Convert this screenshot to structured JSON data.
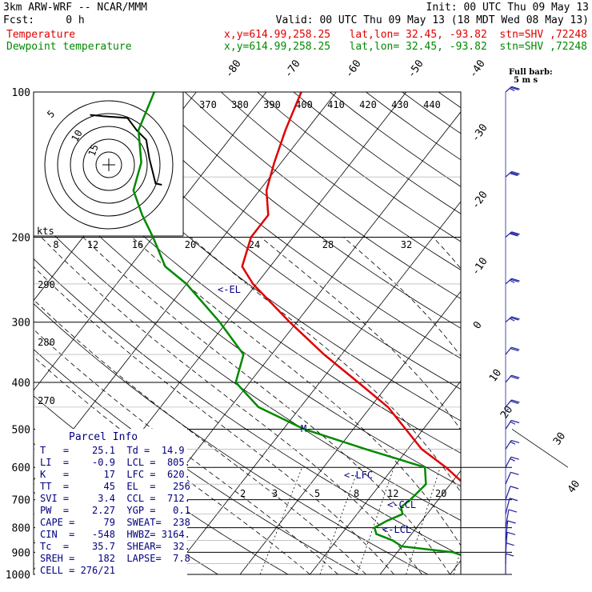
{
  "header": {
    "model": "3km ARW-WRF -- NCAR/MMM",
    "init": "Init: 00 UTC Thu 09 May 13",
    "fcst": "Fcst:     0 h",
    "valid": "Valid: 00 UTC Thu 09 May 13 (18 MDT Wed 08 May 13)",
    "temp_label": "Temperature",
    "dew_label": "Dewpoint temperature",
    "temp_loc": "x,y=614.99,258.25   lat,lon= 32.45, -93.82  stn=SHV ,72248",
    "dew_loc": "x,y=614.99,258.25   lat,lon= 32.45, -93.82  stn=SHV ,72248",
    "barb_title": "Full barb:",
    "barb_units": "5 m s"
  },
  "colors": {
    "temperature": "#e00000",
    "dewpoint": "#008a00",
    "annot": "#000080",
    "barb": "#2020a0"
  },
  "parcel_info": {
    "title": "Parcel Info",
    "rows": [
      "T   =    25.1  Td =  14.9",
      "LI  =    -0.9  LCL =  805.",
      "K   =      17  LFC =  620.",
      "TT  =      45  EL  =   256",
      "SVI =     3.4  CCL =  712.",
      "PW  =    2.27  YGP =   0.1",
      "CAPE =     79  SWEAT=  238",
      "CIN  =   -548  HWBZ= 3164.",
      "Tc  =    35.7  SHEAR=  32.",
      "SREH =    182  LAPSE=  7.8",
      "CELL = 276/21"
    ]
  },
  "levels_annot": {
    "el": "<-EL",
    "lfc": "<-LFC",
    "ccl": "<-CCL",
    "lcl": "<-LCL",
    "mark": "M"
  },
  "hodograph": {
    "kts_label": "kts",
    "ring_labels": [
      "5",
      "10",
      "15"
    ],
    "speed_ticks": [
      "8",
      "12",
      "16",
      "20",
      "24",
      "28",
      "32"
    ],
    "trace_uv": [
      [
        -3,
        8
      ],
      [
        -1,
        7.8
      ],
      [
        3,
        7.5
      ],
      [
        4.5,
        5.5
      ],
      [
        6,
        4
      ],
      [
        6.5,
        1
      ],
      [
        7,
        -1
      ],
      [
        7.5,
        -3
      ],
      [
        8.5,
        -3.2
      ]
    ]
  },
  "chart_data": {
    "type": "line",
    "title": "",
    "xlabel": "",
    "ylabel": "",
    "pressure_ticks": [
      100,
      200,
      300,
      400,
      500,
      600,
      700,
      800,
      900,
      1000
    ],
    "isotherm_labels": [
      -80,
      -70,
      -60,
      -50,
      -40,
      -30,
      -20,
      -10,
      0,
      10,
      20,
      30,
      40
    ],
    "theta_e_labels": [
      370,
      380,
      390,
      400,
      410,
      420,
      430,
      440
    ],
    "dry_adiabat_labels": [
      290,
      280,
      270
    ],
    "mixing_ratio_labels": [
      2,
      3,
      5,
      8,
      12,
      20
    ],
    "series": [
      {
        "name": "Temperature",
        "p": [
          1000,
          975,
          950,
          925,
          900,
          875,
          850,
          825,
          800,
          775,
          750,
          725,
          700,
          650,
          600,
          550,
          500,
          450,
          400,
          350,
          300,
          250,
          230,
          200,
          180,
          160,
          140,
          120,
          100
        ],
        "t": [
          22.8,
          20.0,
          17.5,
          15.2,
          14.0,
          14.2,
          16.3,
          16.0,
          14.5,
          12.5,
          10.5,
          8.5,
          6.5,
          2.0,
          -2.5,
          -8.0,
          -12.5,
          -17.5,
          -24.5,
          -32.5,
          -41.0,
          -50.5,
          -54.0,
          -56.0,
          -56.0,
          -59.0,
          -61.0,
          -63.0,
          -65.0
        ]
      },
      {
        "name": "Dewpoint temperature",
        "p": [
          1000,
          975,
          950,
          925,
          900,
          875,
          850,
          825,
          800,
          775,
          750,
          725,
          700,
          650,
          600,
          550,
          500,
          450,
          400,
          350,
          300,
          250,
          230,
          200,
          180,
          160,
          140,
          120,
          100
        ],
        "t": [
          14.9,
          13.0,
          12.5,
          11.0,
          8.0,
          0.0,
          -2.0,
          -5.0,
          -6.0,
          -5.0,
          -3.5,
          -4.5,
          -4.0,
          -3.5,
          -5.5,
          -16.0,
          -27.0,
          -36.0,
          -42.0,
          -44.0,
          -51.0,
          -60.0,
          -65.0,
          -70.0,
          -74.0,
          -78.0,
          -80.0,
          -84.0,
          -86.0
        ]
      }
    ],
    "wind_barbs": [
      {
        "p": 1000,
        "spd": 8,
        "dir": 180
      },
      {
        "p": 950,
        "spd": 10,
        "dir": 185
      },
      {
        "p": 900,
        "spd": 12,
        "dir": 195
      },
      {
        "p": 850,
        "spd": 12,
        "dir": 200
      },
      {
        "p": 800,
        "spd": 10,
        "dir": 210
      },
      {
        "p": 750,
        "spd": 10,
        "dir": 220
      },
      {
        "p": 700,
        "spd": 12,
        "dir": 230
      },
      {
        "p": 650,
        "spd": 12,
        "dir": 235
      },
      {
        "p": 600,
        "spd": 14,
        "dir": 240
      },
      {
        "p": 550,
        "spd": 15,
        "dir": 245
      },
      {
        "p": 500,
        "spd": 16,
        "dir": 245
      },
      {
        "p": 450,
        "spd": 18,
        "dir": 250
      },
      {
        "p": 400,
        "spd": 20,
        "dir": 250
      },
      {
        "p": 350,
        "spd": 22,
        "dir": 250
      },
      {
        "p": 300,
        "spd": 24,
        "dir": 255
      },
      {
        "p": 250,
        "spd": 26,
        "dir": 255
      },
      {
        "p": 200,
        "spd": 28,
        "dir": 255
      },
      {
        "p": 150,
        "spd": 28,
        "dir": 255
      },
      {
        "p": 100,
        "spd": 26,
        "dir": 255
      }
    ]
  }
}
